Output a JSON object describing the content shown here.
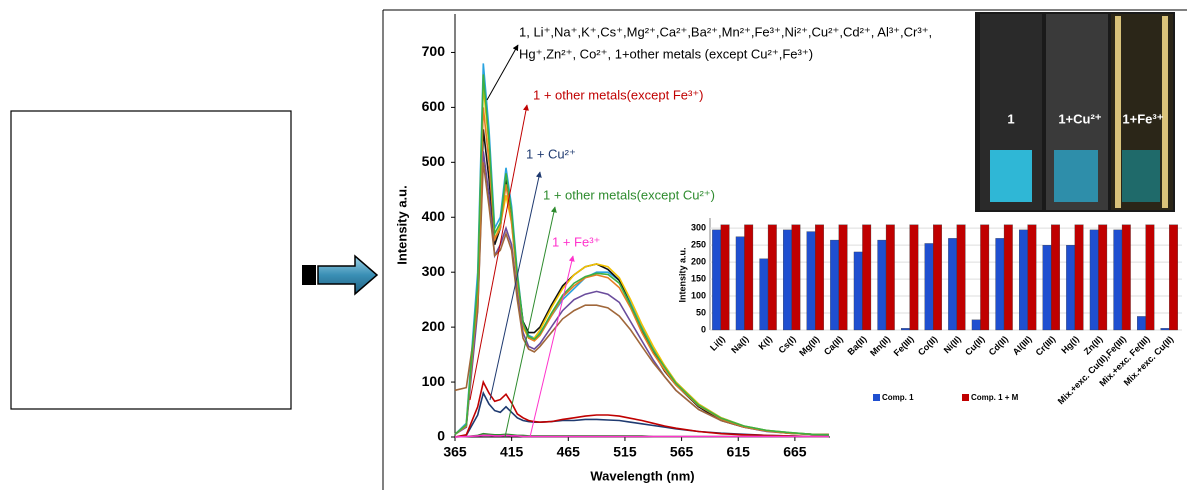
{
  "chart_data": [
    {
      "type": "line",
      "x_label": "Wavelength (nm)",
      "y_label": "Intensity a.u.",
      "xlim": [
        365,
        696
      ],
      "ylim": [
        0,
        770
      ],
      "xticks": [
        365,
        415,
        465,
        515,
        565,
        615,
        665
      ],
      "yticks": [
        0,
        100,
        200,
        300,
        400,
        500,
        600,
        700
      ],
      "x": [
        365,
        375,
        385,
        390,
        395,
        400,
        405,
        410,
        415,
        420,
        425,
        430,
        435,
        440,
        450,
        460,
        470,
        480,
        490,
        500,
        510,
        520,
        530,
        540,
        550,
        560,
        580,
        600,
        620,
        640,
        660,
        680,
        695
      ],
      "series": [
        {
          "color": "#29a3e0",
          "values": [
            5,
            25,
            300,
            680,
            560,
            380,
            400,
            490,
            420,
            300,
            210,
            185,
            180,
            190,
            220,
            250,
            270,
            290,
            300,
            300,
            285,
            245,
            200,
            160,
            130,
            100,
            60,
            35,
            20,
            12,
            8,
            5,
            4
          ]
        },
        {
          "color": "#111111",
          "values": [
            5,
            20,
            250,
            560,
            470,
            350,
            380,
            470,
            400,
            290,
            210,
            190,
            190,
            200,
            240,
            275,
            295,
            310,
            315,
            305,
            285,
            240,
            195,
            155,
            120,
            95,
            55,
            30,
            18,
            11,
            7,
            5,
            4
          ]
        },
        {
          "color": "#f2c200",
          "values": [
            5,
            22,
            270,
            640,
            530,
            360,
            385,
            440,
            390,
            280,
            200,
            180,
            180,
            195,
            235,
            270,
            295,
            310,
            315,
            310,
            290,
            250,
            205,
            165,
            130,
            100,
            60,
            35,
            20,
            12,
            8,
            5,
            4
          ]
        },
        {
          "color": "#6a4c9c",
          "values": [
            5,
            18,
            230,
            520,
            440,
            330,
            350,
            380,
            350,
            260,
            190,
            165,
            160,
            170,
            200,
            230,
            250,
            260,
            265,
            260,
            245,
            210,
            175,
            140,
            110,
            85,
            50,
            30,
            18,
            10,
            7,
            5,
            4
          ]
        },
        {
          "color": "#a0673a",
          "values": [
            85,
            90,
            230,
            500,
            420,
            330,
            340,
            370,
            340,
            250,
            180,
            160,
            155,
            165,
            190,
            215,
            230,
            240,
            240,
            235,
            220,
            195,
            165,
            135,
            110,
            85,
            50,
            30,
            18,
            11,
            7,
            5,
            5
          ]
        },
        {
          "color": "#e67e22",
          "values": [
            5,
            20,
            260,
            600,
            500,
            360,
            380,
            460,
            390,
            285,
            205,
            180,
            175,
            185,
            220,
            255,
            275,
            290,
            295,
            290,
            272,
            235,
            190,
            152,
            122,
            95,
            57,
            33,
            19,
            11,
            7,
            5,
            4
          ]
        },
        {
          "color": "#3cb043",
          "values": [
            5,
            22,
            280,
            660,
            540,
            370,
            390,
            480,
            410,
            295,
            208,
            183,
            178,
            188,
            225,
            258,
            280,
            292,
            298,
            296,
            280,
            240,
            197,
            158,
            127,
            98,
            58,
            34,
            20,
            12,
            8,
            5,
            4
          ]
        },
        {
          "color": "#1f3a70",
          "values": [
            0,
            3,
            40,
            80,
            60,
            48,
            45,
            55,
            45,
            35,
            30,
            28,
            27,
            27,
            28,
            30,
            30,
            32,
            32,
            31,
            30,
            27,
            24,
            21,
            18,
            15,
            10,
            7,
            5,
            3,
            2,
            1,
            1
          ]
        },
        {
          "color": "#c00000",
          "values": [
            0,
            4,
            55,
            100,
            80,
            65,
            68,
            78,
            62,
            42,
            35,
            30,
            28,
            27,
            28,
            32,
            35,
            38,
            40,
            40,
            38,
            34,
            30,
            25,
            20,
            16,
            10,
            6,
            4,
            3,
            2,
            1,
            1
          ]
        },
        {
          "color": "#2e8b2e",
          "values": [
            0,
            1,
            3,
            6,
            5,
            4,
            4,
            5,
            4,
            3,
            3,
            2,
            2,
            2,
            2,
            2,
            2,
            2,
            2,
            2,
            2,
            2,
            2,
            1,
            1,
            1,
            1,
            1,
            1,
            1,
            1,
            1,
            1
          ]
        },
        {
          "color": "#ff33cc",
          "values": [
            0,
            1,
            2,
            3,
            3,
            2,
            2,
            3,
            2,
            2,
            1,
            1,
            1,
            1,
            1,
            1,
            1,
            1,
            1,
            1,
            1,
            1,
            1,
            1,
            1,
            1,
            1,
            1,
            1,
            1,
            1,
            1,
            1
          ]
        }
      ],
      "annotations": [
        {
          "text": "1, Li⁺,Na⁺,K⁺,Cs⁺,Mg²⁺,Ca²⁺,Ba²⁺,Mn²⁺,Fe³⁺,Ni²⁺,Cu²⁺,Cd²⁺, Al³⁺,Cr³⁺,",
          "color": "#000000"
        },
        {
          "text": "Hg⁺,Zn²⁺, Co²⁺, 1+other metals (except Cu²⁺,Fe³⁺)",
          "color": "#000000"
        },
        {
          "text": "1 + other metals(except Fe³⁺)",
          "color": "#c00000"
        },
        {
          "text": "1 + Cu²⁺",
          "color": "#1f3a70"
        },
        {
          "text": "1 + other metals(except Cu²⁺)",
          "color": "#2e8b2e"
        },
        {
          "text": "1 + Fe³⁺",
          "color": "#ff33cc"
        }
      ],
      "photo_labels": [
        "1",
        "1+Cu²⁺",
        "1+Fe³⁺"
      ]
    },
    {
      "type": "bar",
      "y_label": "Intensity a.u.",
      "ylim": [
        0,
        330
      ],
      "yticks": [
        0,
        50,
        100,
        150,
        200,
        250,
        300
      ],
      "categories": [
        "Li(I)",
        "Na(I)",
        "K(I)",
        "Cs(I)",
        "Mg(II)",
        "Ca(II)",
        "Ba(II)",
        "Mn(II)",
        "Fe(III)",
        "Co(II)",
        "Ni(II)",
        "Cu(II)",
        "Cd(II)",
        "Al(III)",
        "Cr(III)",
        "Hg(I)",
        "Zn(II)",
        "Mix.+exc. Cu(II),Fe(III)",
        "Mix.+exc. Fe(III)",
        "Mix.+exc. Cu(II)"
      ],
      "series": [
        {
          "name": "Comp. 1",
          "color": "#1f4fd0",
          "values": [
            295,
            275,
            210,
            295,
            290,
            265,
            230,
            265,
            5,
            255,
            270,
            30,
            270,
            295,
            250,
            250,
            295,
            295,
            40,
            5
          ]
        },
        {
          "name": "Comp. 1 + M",
          "color": "#c00000",
          "values": [
            310,
            310,
            310,
            310,
            310,
            310,
            310,
            310,
            310,
            310,
            310,
            310,
            310,
            310,
            310,
            310,
            310,
            310,
            310,
            310
          ]
        }
      ]
    }
  ]
}
